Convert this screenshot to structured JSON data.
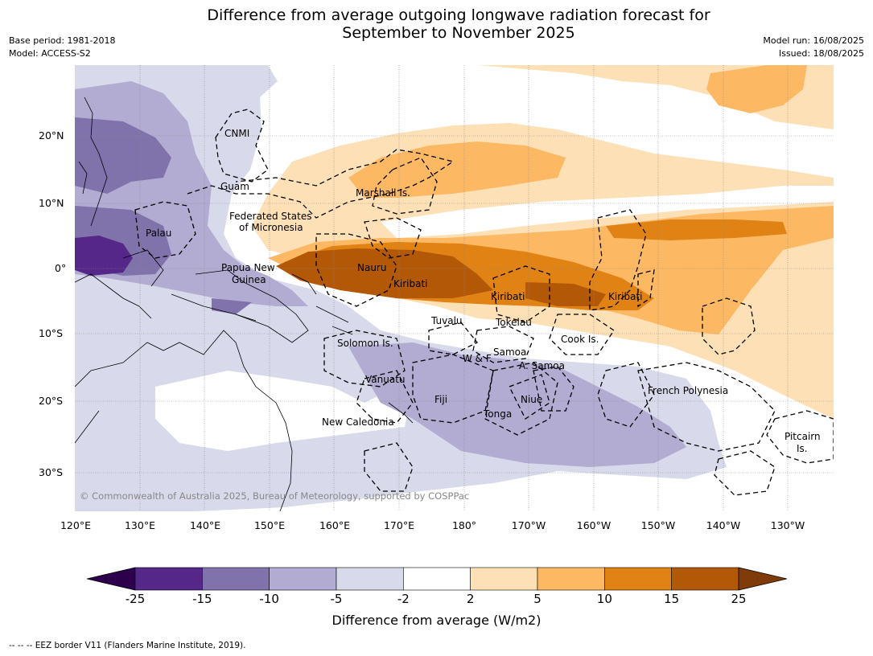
{
  "title_line1": "Difference from average outgoing longwave radiation forecast for",
  "title_line2": "September to November 2025",
  "meta_left": [
    "Base period: 1981-2018",
    "Model: ACCESS-S2"
  ],
  "meta_right": [
    "Model run: 16/08/2025",
    "Issued: 18/08/2025"
  ],
  "lat_ticks": [
    "20°N",
    "10°N",
    "0°",
    "10°S",
    "20°S",
    "30°S"
  ],
  "lon_ticks": [
    "120°E",
    "130°E",
    "140°E",
    "150°E",
    "160°E",
    "170°E",
    "180°",
    "170°W",
    "160°W",
    "150°W",
    "140°W",
    "130°W"
  ],
  "region_labels": {
    "cnmi": "CNMI",
    "guam": "Guam",
    "marshall": "Marshall Is.",
    "fsm1": "Federated States",
    "fsm2": "of Micronesia",
    "palau": "Palau",
    "png1": "Papua New",
    "png2": "Guinea",
    "nauru": "Nauru",
    "kiribati1": "Kiribati",
    "kiribati2": "Kiribati",
    "kiribati3": "Kiribati",
    "tuvalu": "Tuvalu",
    "tokelau": "Tokelau",
    "cook": "Cook Is.",
    "solomon": "Solomon Is.",
    "wf": "W & F",
    "samoa": "Samoa",
    "asamoa": "A. Samoa",
    "vanuatu": "Vanuatu",
    "fiji": "Fiji",
    "niue": "Niue",
    "tonga": "Tonga",
    "frenchpoly": "French Polynesia",
    "newcal": "New Caledonia",
    "pitcairn1": "Pitcairn",
    "pitcairn2": "Is."
  },
  "copyright": "© Commonwealth of Australia 2025, Bureau of Meteorology, supported by COSPPac",
  "colorbar": {
    "ticks": [
      "-25",
      "-15",
      "-10",
      "-5",
      "-2",
      "2",
      "5",
      "10",
      "15",
      "25"
    ],
    "colors": [
      "#2d004b",
      "#542788",
      "#8073ac",
      "#b2abd2",
      "#d8daeb",
      "#ffffff",
      "#fee0b6",
      "#fdb863",
      "#e08214",
      "#b35806",
      "#7f3b08"
    ],
    "label": "Difference from average (W/m2)"
  },
  "footnote": "--  --  -- EEZ border V11 (Flanders Marine Institute, 2019)."
}
